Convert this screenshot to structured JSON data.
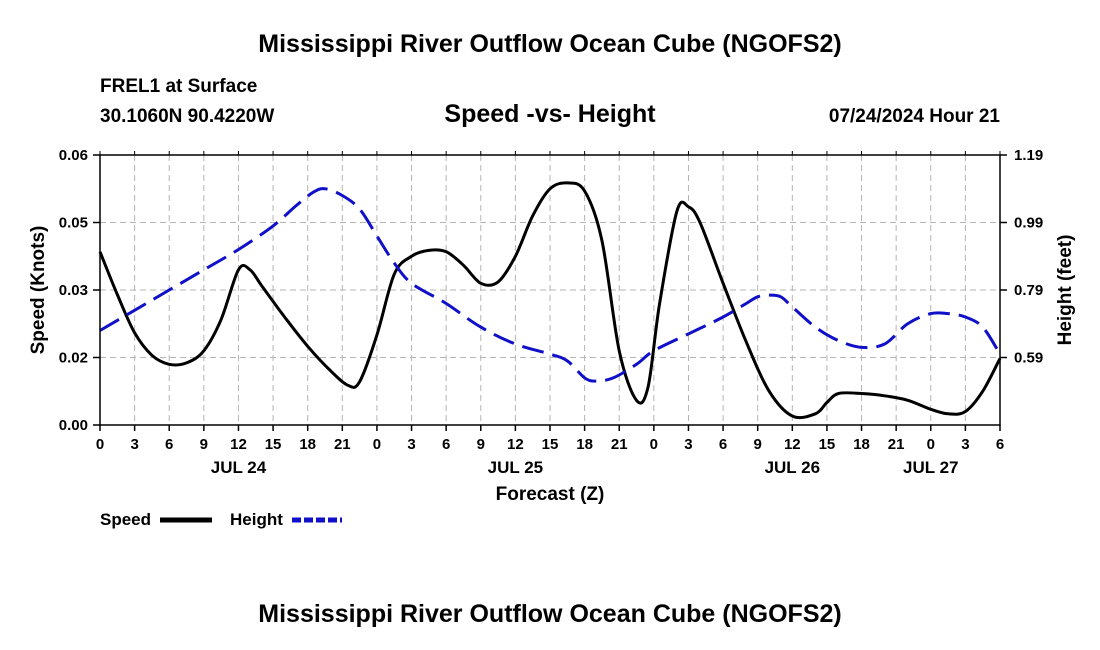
{
  "header": {
    "title": "Mississippi River Outflow Ocean Cube (NGOFS2)",
    "station": "FREL1 at Surface",
    "coords": "30.1060N  90.4220W",
    "subtitle": "Speed -vs- Height",
    "datetime": "07/24/2024 Hour 21"
  },
  "footer": {
    "title": "Mississippi River Outflow Ocean Cube (NGOFS2)"
  },
  "chart_data": {
    "type": "line",
    "title": "Speed -vs- Height",
    "xlabel": "Forecast (Z)",
    "ylabel": "Speed (Knots)",
    "y2label": "Height (feet)",
    "xlim": [
      0,
      78
    ],
    "ylim": [
      0,
      0.06
    ],
    "y2lim": [
      0.39,
      1.19
    ],
    "x_ticks": [
      0,
      3,
      6,
      9,
      12,
      15,
      18,
      21,
      24,
      27,
      30,
      33,
      36,
      39,
      42,
      45,
      48,
      51,
      54,
      57,
      60,
      63,
      66,
      69,
      72,
      75,
      78
    ],
    "x_tick_labels": [
      "0",
      "3",
      "6",
      "9",
      "12",
      "15",
      "18",
      "21",
      "0",
      "3",
      "6",
      "9",
      "12",
      "15",
      "18",
      "21",
      "0",
      "3",
      "6",
      "9",
      "12",
      "15",
      "18",
      "21",
      "0",
      "3",
      "6"
    ],
    "y_ticks": [
      0.0,
      0.02,
      0.03,
      0.05,
      0.06
    ],
    "y_tick_labels": [
      "0.00",
      "0.02",
      "0.03",
      "0.05",
      "0.06"
    ],
    "y_tick_values": [
      0.0,
      0.015,
      0.03,
      0.045,
      0.06
    ],
    "y2_ticks": [
      0.59,
      0.79,
      0.99,
      1.19
    ],
    "y2_tick_labels": [
      "0.59",
      "0.79",
      "0.99",
      "1.19"
    ],
    "date_labels": [
      {
        "x": 12,
        "label": "JUL 24"
      },
      {
        "x": 36,
        "label": "JUL 25"
      },
      {
        "x": 60,
        "label": "JUL 26"
      },
      {
        "x": 72,
        "label": "JUL 27"
      }
    ],
    "grid": true,
    "legend": [
      {
        "name": "Speed",
        "color": "#000000",
        "style": "solid"
      },
      {
        "name": "Height",
        "color": "#1010c8",
        "style": "dashed"
      }
    ],
    "series": [
      {
        "name": "Speed",
        "axis": "left",
        "color": "#000000",
        "x": [
          0,
          1.5,
          3,
          4.5,
          6,
          7.5,
          9,
          10.5,
          12,
          13,
          14,
          16,
          18,
          20,
          21.5,
          22.5,
          24,
          25.5,
          27,
          28.5,
          30,
          31.5,
          33,
          34.5,
          36,
          37.5,
          39,
          40.5,
          42,
          43.5,
          45,
          46.5,
          47.5,
          48.5,
          50,
          51,
          52,
          54,
          56,
          58,
          60,
          62,
          63,
          64,
          66,
          68,
          70,
          72,
          73.5,
          75,
          76.5,
          78
        ],
        "values": [
          0.0385,
          0.029,
          0.0205,
          0.0155,
          0.0135,
          0.0138,
          0.0165,
          0.0235,
          0.0345,
          0.0345,
          0.031,
          0.024,
          0.0175,
          0.012,
          0.0088,
          0.0096,
          0.02,
          0.0335,
          0.0375,
          0.0388,
          0.0385,
          0.0355,
          0.0315,
          0.0318,
          0.0375,
          0.0465,
          0.0525,
          0.0538,
          0.052,
          0.041,
          0.0165,
          0.0055,
          0.0085,
          0.027,
          0.0475,
          0.0485,
          0.045,
          0.0315,
          0.0185,
          0.0075,
          0.002,
          0.0025,
          0.005,
          0.007,
          0.007,
          0.0065,
          0.0055,
          0.0035,
          0.0025,
          0.003,
          0.0075,
          0.0148
        ]
      },
      {
        "name": "Height",
        "axis": "right",
        "color": "#1010c8",
        "x": [
          0,
          3,
          6,
          9,
          12,
          15,
          17,
          18.5,
          19.5,
          21,
          22.5,
          24,
          25.5,
          27,
          30,
          33,
          36,
          39,
          40.5,
          42,
          43,
          44.5,
          46.5,
          48,
          51,
          54,
          56,
          57,
          58,
          59,
          60,
          62,
          64,
          66,
          68,
          70,
          72,
          73.5,
          75,
          76.5,
          78
        ],
        "values": [
          0.67,
          0.73,
          0.79,
          0.85,
          0.91,
          0.98,
          1.04,
          1.08,
          1.09,
          1.07,
          1.03,
          0.95,
          0.87,
          0.81,
          0.75,
          0.68,
          0.63,
          0.6,
          0.58,
          0.53,
          0.52,
          0.53,
          0.57,
          0.61,
          0.66,
          0.71,
          0.75,
          0.77,
          0.775,
          0.77,
          0.74,
          0.68,
          0.64,
          0.62,
          0.63,
          0.69,
          0.72,
          0.72,
          0.71,
          0.68,
          0.6
        ]
      }
    ]
  }
}
